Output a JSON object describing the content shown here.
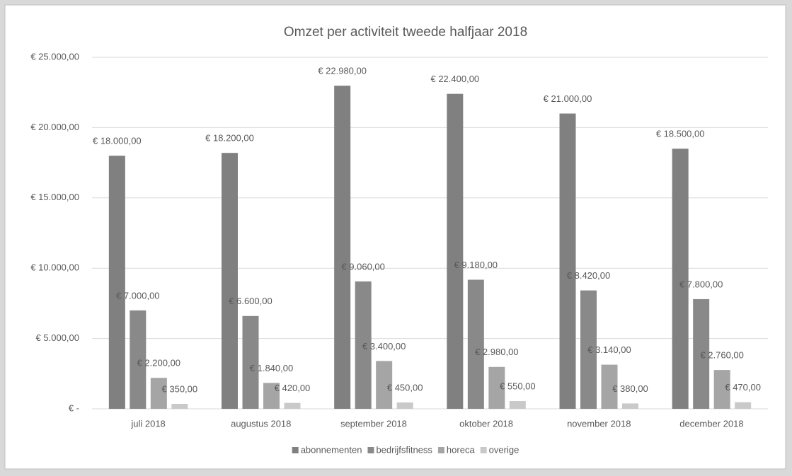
{
  "chart_data": {
    "type": "bar",
    "title": "Omzet per activiteit tweede halfjaar 2018",
    "categories": [
      "juli 2018",
      "augustus 2018",
      "september 2018",
      "oktober 2018",
      "november 2018",
      "december 2018"
    ],
    "series": [
      {
        "name": "abonnementen",
        "color": "#808080",
        "values": [
          18000,
          18200,
          22980,
          22400,
          21000,
          18500
        ],
        "value_labels": [
          "€ 18.000,00",
          "€ 18.200,00",
          "€ 22.980,00",
          "€ 22.400,00",
          "€ 21.000,00",
          "€ 18.500,00"
        ]
      },
      {
        "name": "bedrijfsfitness",
        "color": "#898989",
        "values": [
          7000,
          6600,
          9060,
          9180,
          8420,
          7800
        ],
        "value_labels": [
          "€ 7.000,00",
          "€ 6.600,00",
          "€ 9.060,00",
          "€ 9.180,00",
          "€ 8.420,00",
          "€ 7.800,00"
        ]
      },
      {
        "name": "horeca",
        "color": "#a5a5a5",
        "values": [
          2200,
          1840,
          3400,
          2980,
          3140,
          2760
        ],
        "value_labels": [
          "€ 2.200,00",
          "€ 1.840,00",
          "€ 3.400,00",
          "€ 2.980,00",
          "€ 3.140,00",
          "€ 2.760,00"
        ]
      },
      {
        "name": "overige",
        "color": "#c9c9c9",
        "values": [
          350,
          420,
          450,
          550,
          380,
          470
        ],
        "value_labels": [
          "€ 350,00",
          "€ 420,00",
          "€ 450,00",
          "€ 550,00",
          "€ 380,00",
          "€ 470,00"
        ]
      }
    ],
    "ylim": [
      0,
      25000
    ],
    "yticks": [
      {
        "value": 0,
        "label": "€ -"
      },
      {
        "value": 5000,
        "label": "€ 5.000,00"
      },
      {
        "value": 10000,
        "label": "€ 10.000,00"
      },
      {
        "value": 15000,
        "label": "€ 15.000,00"
      },
      {
        "value": 20000,
        "label": "€ 20.000,00"
      },
      {
        "value": 25000,
        "label": "€ 25.000,00"
      }
    ],
    "grid": true,
    "legend": "bottom"
  }
}
